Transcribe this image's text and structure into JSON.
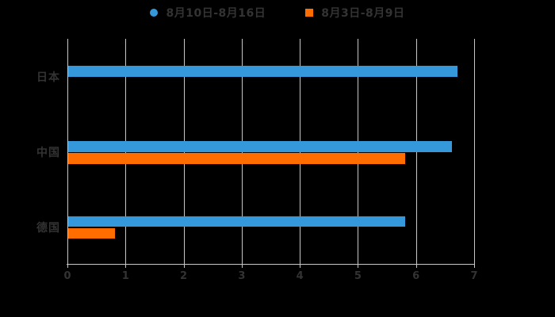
{
  "background": "#000000",
  "legend": {
    "items": [
      {
        "label": "8月10日-8月16日",
        "color": "#3498db",
        "shape": "circle"
      },
      {
        "label": "8月3日-8月9日",
        "color": "#ff6d00",
        "shape": "square"
      }
    ]
  },
  "chart_data": {
    "type": "bar",
    "orientation": "horizontal",
    "title": "",
    "xlabel": "",
    "ylabel": "",
    "categories": [
      "日本",
      "中国",
      "德国"
    ],
    "series": [
      {
        "name": "8月10日-8月16日",
        "color": "#3498db",
        "values": [
          6.7,
          6.6,
          5.8
        ]
      },
      {
        "name": "8月3日-8月9日",
        "color": "#ff6d00",
        "values": [
          null,
          5.8,
          0.8
        ]
      }
    ],
    "xlim": [
      0,
      7
    ],
    "xticks": [
      0,
      1,
      2,
      3,
      4,
      5,
      6,
      7
    ],
    "grid": true,
    "legend_position": "top",
    "axis_color": "#c8c8c8",
    "text_color": "#333333"
  }
}
